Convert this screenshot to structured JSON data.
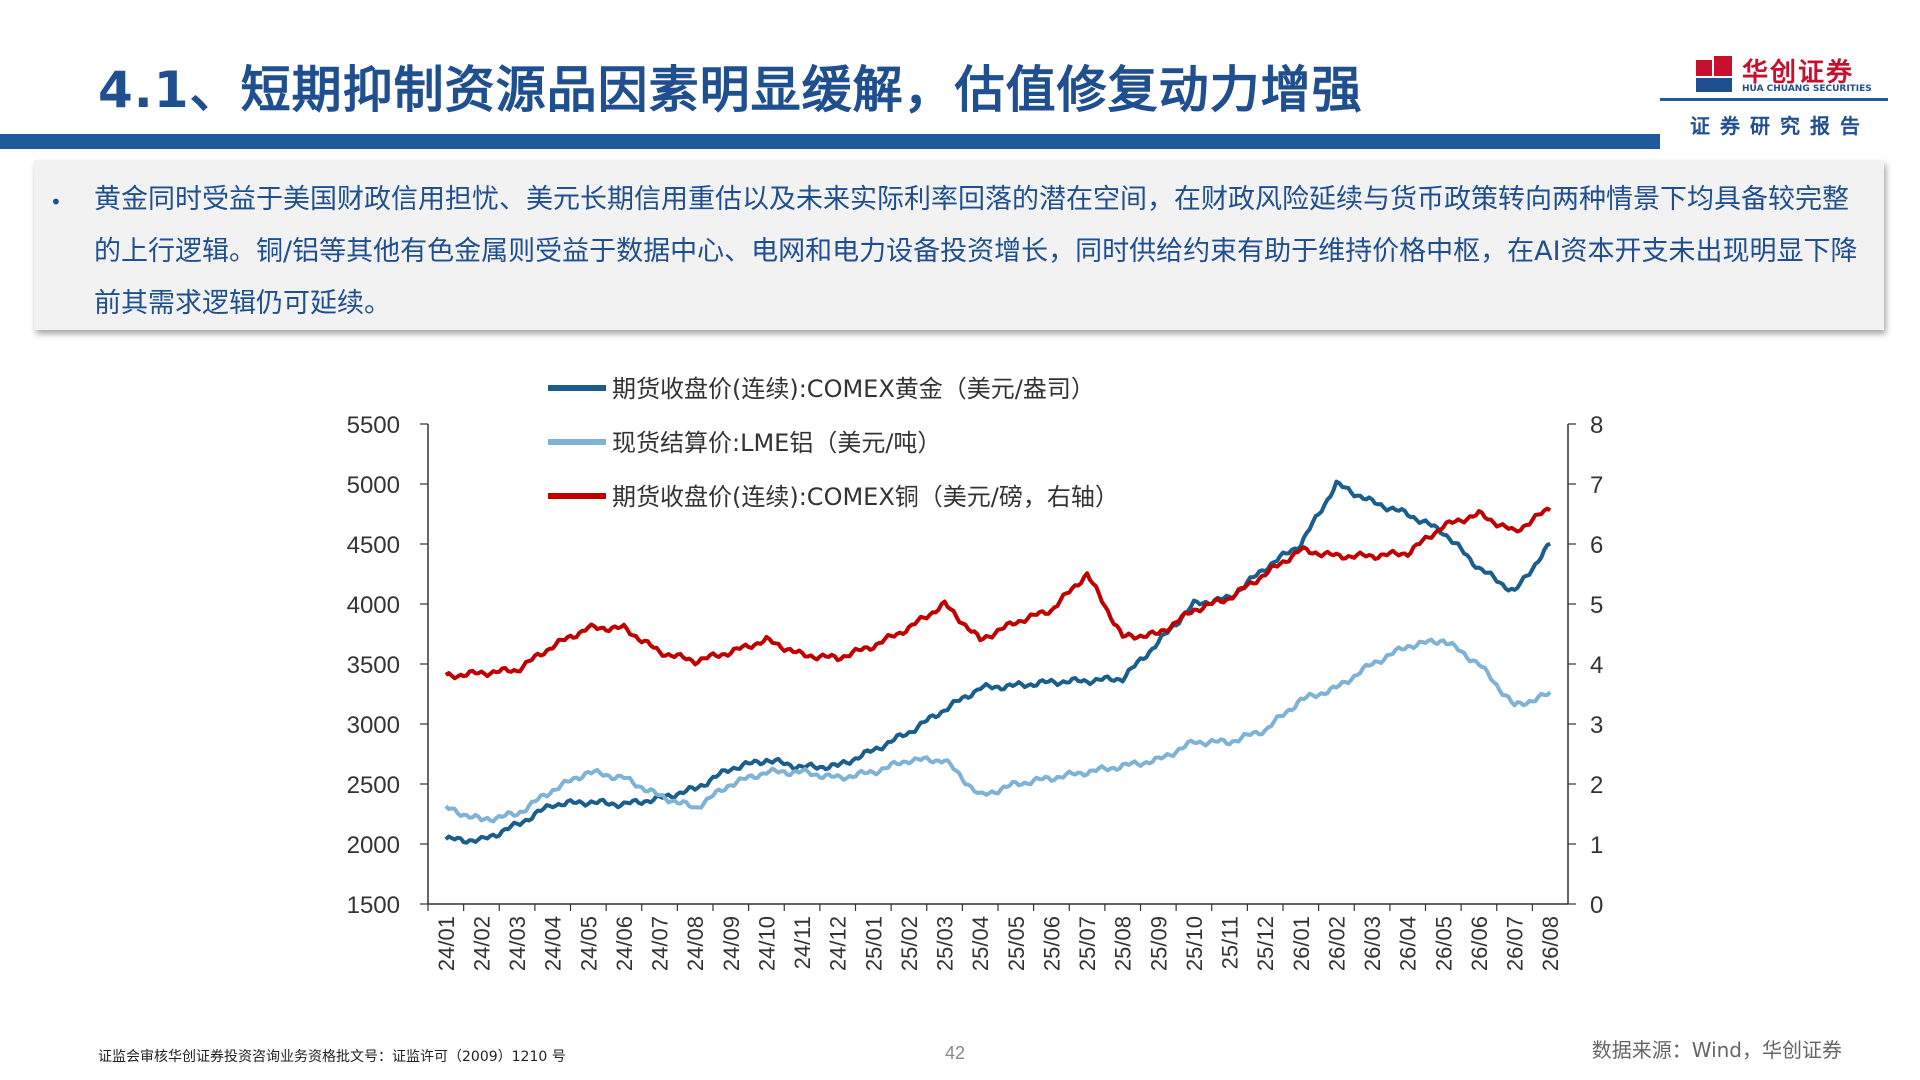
{
  "title": "4.1、短期抑制资源品因素明显缓解，估值修复动力增强",
  "logo": {
    "cn": "华创证券",
    "en": "HUA CHUANG SECURITIES",
    "sub": "证券研究报告"
  },
  "bullet": "黄金同时受益于美国财政信用担忧、美元长期信用重估以及未来实际利率回落的潜在空间，在财政风险延续与货币政策转向两种情景下均具备较完整的上行逻辑。铜/铝等其他有色金属则受益于数据中心、电网和电力设备投资增长，同时供给约束有助于维持价格中枢，在AI资本开支未出现明显下降前其需求逻辑仍可延续。",
  "footer": {
    "license": "证监会审核华创证券投资咨询业务资格批文号：证监许可（2009）1210 号",
    "page": "42",
    "source": "数据来源：Wind，华创证券"
  },
  "colors": {
    "gold": "#1a5e8c",
    "aluminum": "#7fb3d5",
    "copper": "#c00000",
    "brand": "#1f5a9e"
  },
  "chart_data": {
    "type": "line",
    "categories": [
      "24/01",
      "24/02",
      "24/03",
      "24/04",
      "24/05",
      "24/06",
      "24/07",
      "24/08",
      "24/09",
      "24/10",
      "24/11",
      "24/12",
      "25/01",
      "25/02",
      "25/03",
      "25/04",
      "25/05",
      "25/06",
      "25/07",
      "25/08",
      "25/09",
      "25/10",
      "25/11",
      "25/12",
      "26/01",
      "26/02",
      "26/03",
      "26/04",
      "26/05",
      "26/06",
      "26/07",
      "26/08"
    ],
    "left_axis": {
      "min": 1500,
      "max": 5500,
      "ticks": [
        "1500",
        "2000",
        "2500",
        "3000",
        "3500",
        "4000",
        "4500",
        "5000",
        "5500"
      ]
    },
    "right_axis": {
      "min": 0,
      "max": 8,
      "ticks": [
        "0",
        "1",
        "2",
        "3",
        "4",
        "5",
        "6",
        "7",
        "8"
      ]
    },
    "legend_position": "top-left",
    "series": [
      {
        "name": "期货收盘价(连续):COMEX黄金（美元/盎司）",
        "axis": "left",
        "values": [
          2040,
          2030,
          2160,
          2330,
          2350,
          2330,
          2380,
          2460,
          2630,
          2700,
          2640,
          2650,
          2780,
          2930,
          3120,
          3300,
          3320,
          3350,
          3360,
          3380,
          3680,
          4000,
          4050,
          4300,
          4500,
          5000,
          4850,
          4750,
          4600,
          4300,
          4100,
          4500
        ]
      },
      {
        "name": "现货结算价:LME铝（美元/吨）",
        "axis": "left",
        "values": [
          2300,
          2200,
          2250,
          2450,
          2600,
          2550,
          2400,
          2300,
          2500,
          2600,
          2600,
          2550,
          2600,
          2700,
          2700,
          2400,
          2500,
          2550,
          2600,
          2650,
          2700,
          2850,
          2850,
          2950,
          3200,
          3300,
          3500,
          3650,
          3700,
          3500,
          3150,
          3250
        ]
      },
      {
        "name": "期货收盘价(连续):COMEX铜（美元/磅，右轴）",
        "axis": "right",
        "values": [
          3.8,
          3.85,
          3.9,
          4.3,
          4.6,
          4.6,
          4.2,
          4.05,
          4.2,
          4.4,
          4.15,
          4.1,
          4.3,
          4.6,
          5.0,
          4.4,
          4.7,
          4.9,
          5.5,
          4.45,
          4.5,
          4.9,
          5.1,
          5.5,
          5.9,
          5.8,
          5.8,
          5.85,
          6.3,
          6.5,
          6.2,
          6.6
        ]
      }
    ]
  }
}
